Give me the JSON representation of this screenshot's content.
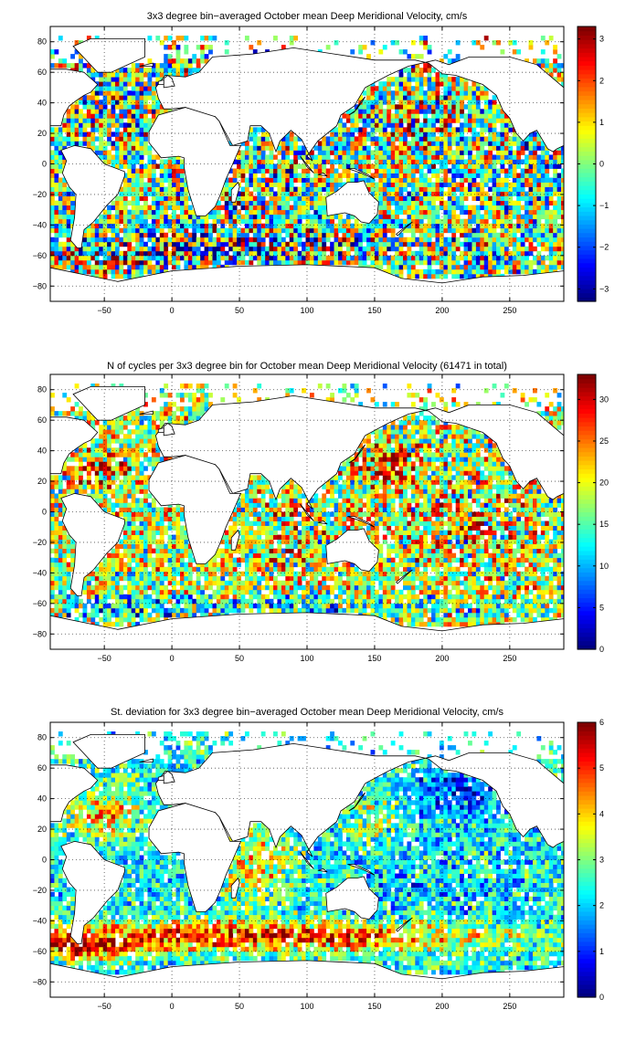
{
  "chart_data": [
    {
      "type": "heatmap",
      "title": "3x3 degree bin−averaged October mean Deep Meridional Velocity, cm/s",
      "xlim": [
        -90,
        290
      ],
      "ylim": [
        -90,
        90
      ],
      "xticks": [
        -50,
        0,
        50,
        100,
        150,
        200,
        250
      ],
      "yticks": [
        -80,
        -60,
        -40,
        -20,
        0,
        20,
        40,
        60,
        80
      ],
      "bin_size_deg": 3,
      "grid": true,
      "colormap": "jet",
      "colorbar": {
        "position": "right",
        "range": [
          -3.3,
          3.3
        ],
        "ticks": [
          -3,
          -2,
          -1,
          0,
          1,
          2,
          3
        ]
      },
      "field_profile": {
        "fill_fraction": 0.92,
        "center": 0.5,
        "spread": 0.52,
        "noise": 0.75,
        "amplitude": [
          {
            "lon": -35,
            "lat": 35,
            "rx": 30,
            "ry": 16,
            "amp": 0.22,
            "ofs": -0.04
          },
          {
            "lon": 85,
            "lat": 0,
            "rx": 18,
            "ry": 18,
            "amp": 0.18,
            "ofs": -0.03
          },
          {
            "lon": 50,
            "lat": -25,
            "rx": 18,
            "ry": 18,
            "amp": 0.16,
            "ofs": 0.04
          },
          {
            "lon": 60,
            "lat": -53,
            "rx": 90,
            "ry": 7,
            "amp": 0.3,
            "ofs": -0.08
          },
          {
            "lon": 20,
            "lat": -53,
            "rx": 130,
            "ry": 8,
            "amp": 0.24,
            "ofs": -0.05
          },
          {
            "lon": -40,
            "lat": -63,
            "rx": 70,
            "ry": 5,
            "amp": 0.34,
            "ofs": 0.12
          },
          {
            "lon": 185,
            "lat": 30,
            "rx": 35,
            "ry": 18,
            "amp": 0.14,
            "ofs": 0.1
          },
          {
            "lon": 270,
            "lat": 15,
            "rx": 20,
            "ry": 25,
            "amp": 0.16,
            "ofs": -0.05
          }
        ]
      }
    },
    {
      "type": "heatmap",
      "title": "N of cycles per 3x3 degree bin for October mean Deep Meridional Velocity (61471 in total)",
      "xlim": [
        -90,
        290
      ],
      "ylim": [
        -90,
        90
      ],
      "xticks": [
        -50,
        0,
        50,
        100,
        150,
        200,
        250
      ],
      "yticks": [
        -80,
        -60,
        -40,
        -20,
        0,
        20,
        40,
        60,
        80
      ],
      "bin_size_deg": 3,
      "grid": true,
      "colormap": "jet",
      "colorbar": {
        "position": "right",
        "range": [
          0,
          33
        ],
        "ticks": [
          0,
          5,
          10,
          15,
          20,
          25,
          30
        ]
      },
      "field_profile": {
        "fill_fraction": 0.9,
        "center": 0.55,
        "spread": 0.34,
        "noise": 0.9,
        "amplitude": [
          {
            "lon": -50,
            "lat": 30,
            "rx": 28,
            "ry": 14,
            "amp": 0.2,
            "ofs": 0.2
          },
          {
            "lon": 160,
            "lat": 30,
            "rx": 18,
            "ry": 14,
            "amp": 0.2,
            "ofs": 0.28
          },
          {
            "lon": 20,
            "lat": -63,
            "rx": 180,
            "ry": 8,
            "amp": 0.1,
            "ofs": -0.2
          },
          {
            "lon": 215,
            "lat": -10,
            "rx": 55,
            "ry": 35,
            "amp": 0.14,
            "ofs": 0.08
          },
          {
            "lon": 90,
            "lat": -15,
            "rx": 25,
            "ry": 25,
            "amp": 0.16,
            "ofs": 0.08
          },
          {
            "lon": 250,
            "lat": 45,
            "rx": 30,
            "ry": 15,
            "amp": 0.1,
            "ofs": -0.15
          }
        ]
      }
    },
    {
      "type": "heatmap",
      "title": "St. deviation for 3x3 degree bin−averaged October mean Deep Meridional Velocity, cm/s",
      "xlim": [
        -90,
        290
      ],
      "ylim": [
        -90,
        90
      ],
      "xticks": [
        -50,
        0,
        50,
        100,
        150,
        200,
        250
      ],
      "yticks": [
        -80,
        -60,
        -40,
        -20,
        0,
        20,
        40,
        60,
        80
      ],
      "bin_size_deg": 3,
      "grid": true,
      "colormap": "jet",
      "colorbar": {
        "position": "right",
        "range": [
          0,
          6
        ],
        "ticks": [
          0,
          1,
          2,
          3,
          4,
          5,
          6
        ]
      },
      "field_profile": {
        "fill_fraction": 0.92,
        "center": 0.38,
        "spread": 0.26,
        "noise": 0.75,
        "amplitude": [
          {
            "lon": 60,
            "lat": -50,
            "rx": 180,
            "ry": 10,
            "amp": 0.12,
            "ofs": 0.48
          },
          {
            "lon": -60,
            "lat": -58,
            "rx": 40,
            "ry": 8,
            "amp": 0.12,
            "ofs": 0.45
          },
          {
            "lon": -50,
            "lat": 30,
            "rx": 26,
            "ry": 16,
            "amp": 0.1,
            "ofs": 0.32
          },
          {
            "lon": 60,
            "lat": -5,
            "rx": 30,
            "ry": 22,
            "amp": 0.1,
            "ofs": 0.28
          },
          {
            "lon": 210,
            "lat": 45,
            "rx": 32,
            "ry": 16,
            "amp": 0.06,
            "ofs": -0.22
          },
          {
            "lon": 190,
            "lat": -20,
            "rx": 55,
            "ry": 25,
            "amp": 0.08,
            "ofs": -0.06
          },
          {
            "lon": 150,
            "lat": 25,
            "rx": 18,
            "ry": 15,
            "amp": 0.1,
            "ofs": 0.18
          },
          {
            "lon": 285,
            "lat": 35,
            "rx": 12,
            "ry": 18,
            "amp": 0.08,
            "ofs": 0.24
          }
        ]
      }
    }
  ],
  "coastlines": [
    [
      [
        -12,
        50
      ],
      [
        -5,
        58
      ],
      [
        10,
        57
      ],
      [
        20,
        60
      ],
      [
        30,
        70
      ],
      [
        60,
        72
      ],
      [
        90,
        76
      ],
      [
        120,
        72
      ],
      [
        150,
        68
      ],
      [
        180,
        68
      ],
      [
        190,
        66
      ],
      [
        200,
        59
      ],
      [
        210,
        58
      ],
      [
        220,
        55
      ],
      [
        230,
        52
      ],
      [
        240,
        45
      ],
      [
        245,
        35
      ],
      [
        250,
        30
      ],
      [
        255,
        20
      ],
      [
        260,
        15
      ],
      [
        265,
        20
      ],
      [
        270,
        22
      ],
      [
        278,
        10
      ],
      [
        282,
        8
      ],
      [
        285,
        10
      ],
      [
        290,
        12
      ],
      [
        290,
        50
      ],
      [
        270,
        65
      ],
      [
        250,
        70
      ],
      [
        220,
        70
      ],
      [
        205,
        65
      ],
      [
        195,
        68
      ],
      [
        175,
        64
      ],
      [
        160,
        58
      ],
      [
        143,
        50
      ],
      [
        135,
        38
      ],
      [
        125,
        32
      ],
      [
        122,
        25
      ],
      [
        108,
        15
      ],
      [
        100,
        5
      ],
      [
        104,
        2
      ],
      [
        96,
        16
      ],
      [
        88,
        22
      ],
      [
        80,
        15
      ],
      [
        77,
        8
      ],
      [
        72,
        20
      ],
      [
        66,
        25
      ],
      [
        58,
        25
      ],
      [
        56,
        15
      ],
      [
        45,
        12
      ],
      [
        43,
        15
      ],
      [
        35,
        28
      ],
      [
        32,
        31
      ],
      [
        15,
        32
      ],
      [
        10,
        37
      ],
      [
        0,
        36
      ],
      [
        -6,
        36
      ],
      [
        -10,
        43
      ],
      [
        -12,
        50
      ]
    ],
    [
      [
        -17,
        14
      ],
      [
        -17,
        21
      ],
      [
        -10,
        32
      ],
      [
        10,
        37
      ],
      [
        32,
        31
      ],
      [
        35,
        28
      ],
      [
        43,
        12
      ],
      [
        51,
        12
      ],
      [
        45,
        0
      ],
      [
        40,
        -10
      ],
      [
        36,
        -20
      ],
      [
        32,
        -28
      ],
      [
        25,
        -34
      ],
      [
        18,
        -34
      ],
      [
        12,
        -17
      ],
      [
        9,
        -2
      ],
      [
        9,
        4
      ],
      [
        5,
        5
      ],
      [
        -8,
        4
      ],
      [
        -17,
        14
      ]
    ],
    [
      [
        -82,
        9
      ],
      [
        -78,
        2
      ],
      [
        -81,
        -6
      ],
      [
        -76,
        -15
      ],
      [
        -71,
        -20
      ],
      [
        -72,
        -35
      ],
      [
        -75,
        -50
      ],
      [
        -70,
        -55
      ],
      [
        -67,
        -55
      ],
      [
        -65,
        -43
      ],
      [
        -58,
        -38
      ],
      [
        -48,
        -27
      ],
      [
        -40,
        -20
      ],
      [
        -35,
        -8
      ],
      [
        -35,
        -5
      ],
      [
        -50,
        0
      ],
      [
        -60,
        10
      ],
      [
        -72,
        12
      ],
      [
        -82,
        9
      ]
    ],
    [
      [
        114,
        -22
      ],
      [
        122,
        -18
      ],
      [
        130,
        -12
      ],
      [
        137,
        -12
      ],
      [
        142,
        -11
      ],
      [
        146,
        -19
      ],
      [
        153,
        -25
      ],
      [
        152,
        -33
      ],
      [
        146,
        -39
      ],
      [
        140,
        -38
      ],
      [
        135,
        -34
      ],
      [
        128,
        -32
      ],
      [
        115,
        -34
      ],
      [
        114,
        -22
      ]
    ],
    [
      [
        -55,
        60
      ],
      [
        -45,
        60
      ],
      [
        -20,
        70
      ],
      [
        -20,
        82
      ],
      [
        -60,
        82
      ],
      [
        -73,
        77
      ],
      [
        -55,
        60
      ]
    ],
    [
      [
        -90,
        25
      ],
      [
        -82,
        25
      ],
      [
        -80,
        32
      ],
      [
        -76,
        38
      ],
      [
        -70,
        42
      ],
      [
        -65,
        45
      ],
      [
        -60,
        47
      ],
      [
        -55,
        52
      ],
      [
        -65,
        60
      ],
      [
        -78,
        62
      ],
      [
        -90,
        62
      ],
      [
        -90,
        25
      ]
    ],
    [
      [
        -90,
        -68
      ],
      [
        -40,
        -77
      ],
      [
        0,
        -70
      ],
      [
        50,
        -67
      ],
      [
        100,
        -66
      ],
      [
        150,
        -68
      ],
      [
        170,
        -75
      ],
      [
        200,
        -78
      ],
      [
        230,
        -74
      ],
      [
        260,
        -73
      ],
      [
        290,
        -70
      ],
      [
        290,
        -90
      ],
      [
        -90,
        -90
      ],
      [
        -90,
        -68
      ]
    ],
    [
      [
        44,
        -25
      ],
      [
        47,
        -25
      ],
      [
        50,
        -15
      ],
      [
        49,
        -12
      ],
      [
        44,
        -17
      ],
      [
        44,
        -25
      ]
    ],
    [
      [
        131,
        32
      ],
      [
        136,
        35
      ],
      [
        141,
        41
      ],
      [
        143,
        44
      ],
      [
        140,
        41
      ],
      [
        135,
        34
      ],
      [
        131,
        32
      ]
    ],
    [
      [
        166,
        -46
      ],
      [
        173,
        -41
      ],
      [
        178,
        -38
      ],
      [
        174,
        -41
      ],
      [
        167,
        -47
      ],
      [
        166,
        -46
      ]
    ],
    [
      [
        -6,
        50
      ],
      [
        2,
        51
      ],
      [
        0,
        56
      ],
      [
        -3,
        58
      ],
      [
        -6,
        56
      ],
      [
        -6,
        50
      ]
    ],
    [
      [
        -10,
        52
      ],
      [
        -6,
        52
      ],
      [
        -6,
        55
      ],
      [
        -10,
        54
      ],
      [
        -10,
        52
      ]
    ],
    [
      [
        95,
        5
      ],
      [
        105,
        -6
      ],
      [
        100,
        -2
      ],
      [
        95,
        5
      ]
    ],
    [
      [
        108,
        -7
      ],
      [
        115,
        -8
      ],
      [
        112,
        -6
      ],
      [
        108,
        -7
      ]
    ],
    [
      [
        130,
        -3
      ],
      [
        140,
        -6
      ],
      [
        150,
        -10
      ],
      [
        145,
        -7
      ],
      [
        135,
        -3
      ],
      [
        130,
        -3
      ]
    ],
    [
      [
        -24,
        64
      ],
      [
        -14,
        66
      ],
      [
        -14,
        64
      ],
      [
        -24,
        64
      ]
    ]
  ]
}
